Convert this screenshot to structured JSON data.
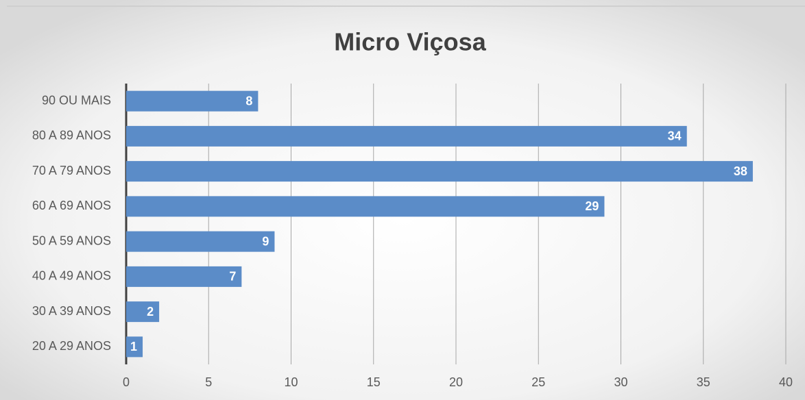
{
  "chart_data": {
    "type": "bar",
    "orientation": "horizontal",
    "title": "Micro Viçosa",
    "categories": [
      "90 OU MAIS",
      "80 A 89 ANOS",
      "70 A 79 ANOS",
      "60 A 69 ANOS",
      "50 A 59 ANOS",
      "40 A 49 ANOS",
      "30 A 39 ANOS",
      "20 A 29 ANOS"
    ],
    "values": [
      8,
      34,
      38,
      29,
      9,
      7,
      2,
      1
    ],
    "color": "#5b8cc8",
    "xlim": [
      0,
      40
    ],
    "xticks": [
      0,
      5,
      10,
      15,
      20,
      25,
      30,
      35,
      40
    ],
    "grid": true
  }
}
